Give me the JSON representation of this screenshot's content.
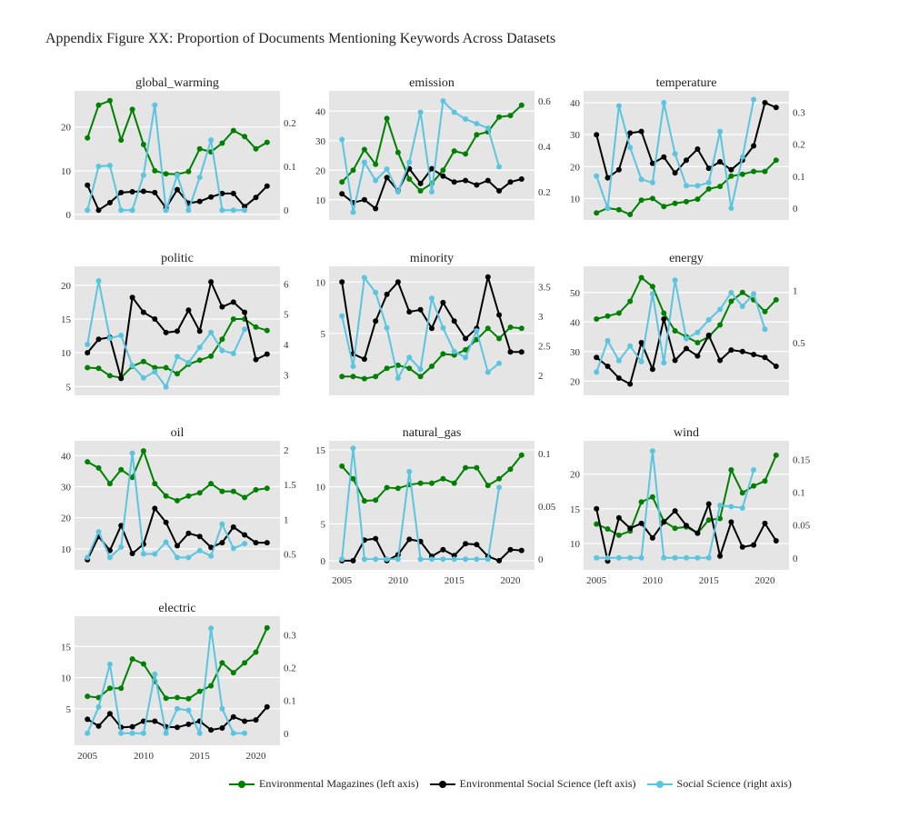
{
  "title": "Appendix Figure XX: Proportion of Documents Mentioning Keywords Across Datasets",
  "colors": {
    "env_mag": "#008000",
    "env_ss": "#000000",
    "ss": "#5bc5e0",
    "panel_bg": "#e5e5e5"
  },
  "legend": [
    {
      "key": "env_mag",
      "label": "Environmental Magazines (left axis)"
    },
    {
      "key": "env_ss",
      "label": "Environmental Social Science (left axis)"
    },
    {
      "key": "ss",
      "label": "Social Science (right axis)"
    }
  ],
  "chart_data": {
    "type": "line",
    "x": [
      2005,
      2006,
      2007,
      2008,
      2009,
      2010,
      2011,
      2012,
      2013,
      2014,
      2015,
      2016,
      2017,
      2018,
      2019,
      2020,
      2021
    ],
    "x_ticks": [
      2005,
      2010,
      2015,
      2020
    ],
    "series_names": [
      "Environmental Magazines (left axis)",
      "Environmental Social Science (left axis)",
      "Social Science (right axis)"
    ],
    "panels": [
      {
        "title": "global_warming",
        "ylim_left": [
          0,
          27
        ],
        "yticks_left": [
          0,
          10,
          20
        ],
        "ylim_right": [
          -0.01,
          0.26
        ],
        "yticks_right": [
          0,
          0.1,
          0.2
        ],
        "env_mag": [
          17.5,
          25,
          26,
          17,
          24,
          16,
          10,
          9.3,
          9.2,
          9.8,
          15,
          14.3,
          16.3,
          19.2,
          17.8,
          15,
          16.5
        ],
        "env_ss": [
          6.7,
          1,
          2.7,
          5,
          5.2,
          5.3,
          5,
          1.5,
          5.7,
          2.6,
          3,
          4,
          4.8,
          4.8,
          1.8,
          3.9,
          6.5
        ],
        "ss": [
          0,
          0.1,
          0.102,
          0,
          0,
          0.08,
          0.24,
          0,
          0.08,
          0,
          0.075,
          0.16,
          0,
          0,
          0,
          null,
          null
        ]
      },
      {
        "title": "emission",
        "ylim_left": [
          5,
          45
        ],
        "yticks_left": [
          10,
          20,
          30,
          40
        ],
        "ylim_right": [
          0.1,
          0.62
        ],
        "yticks_right": [
          0.2,
          0.4,
          0.6
        ],
        "env_mag": [
          16,
          20,
          27,
          22,
          37.5,
          26,
          17,
          13,
          15.5,
          20,
          26.5,
          25.5,
          32,
          33,
          38,
          38.5,
          42
        ],
        "env_ss": [
          12,
          9,
          10,
          7,
          17.5,
          13,
          20.5,
          15.5,
          20.5,
          18,
          16,
          16.5,
          15,
          16.5,
          13,
          16,
          17
        ],
        "ss": [
          0.43,
          0.11,
          0.33,
          0.25,
          0.3,
          0.2,
          0.33,
          0.55,
          0.2,
          0.6,
          0.55,
          0.52,
          0.5,
          0.48,
          0.31,
          null,
          null
        ]
      },
      {
        "title": "temperature",
        "ylim_left": [
          5,
          42
        ],
        "yticks_left": [
          10,
          20,
          30,
          40
        ],
        "ylim_right": [
          -0.02,
          0.35
        ],
        "yticks_right": [
          0,
          0.1,
          0.2,
          0.3
        ],
        "env_mag": [
          5.5,
          7,
          6.5,
          5,
          9.5,
          10,
          7.5,
          8.5,
          9,
          9.8,
          13,
          13.8,
          17,
          17.6,
          18.5,
          18.5,
          22
        ],
        "env_ss": [
          30,
          16.5,
          19,
          30.5,
          31,
          21,
          23,
          18,
          22,
          25.5,
          19.5,
          21.5,
          19,
          22,
          26.5,
          40,
          38.5
        ],
        "ss": [
          0.1,
          0,
          0.32,
          0.19,
          0.09,
          0.08,
          0.33,
          0.17,
          0.07,
          0.07,
          0.08,
          0.24,
          0,
          0.16,
          0.34,
          null,
          null
        ]
      },
      {
        "title": "politic",
        "ylim_left": [
          4.5,
          22
        ],
        "yticks_left": [
          5,
          10,
          15,
          20
        ],
        "ylim_right": [
          2.5,
          6.4
        ],
        "yticks_right": [
          3,
          4,
          5,
          6
        ],
        "env_mag": [
          7.8,
          7.7,
          6.6,
          6.3,
          8,
          8.7,
          7.8,
          7.8,
          6.9,
          8.3,
          8.9,
          9.5,
          12,
          15,
          15,
          13.8,
          13.3
        ],
        "env_ss": [
          10,
          12,
          12.3,
          6.2,
          18.2,
          16,
          15,
          13,
          13.2,
          16.3,
          13.2,
          20.5,
          16.8,
          17.5,
          16,
          9,
          9.8
        ],
        "ss": [
          4,
          6.1,
          4.2,
          4.3,
          3.3,
          2.9,
          3.1,
          2.6,
          3.6,
          3.4,
          3.9,
          4.4,
          3.8,
          3.7,
          4.5,
          null,
          null
        ]
      },
      {
        "title": "minority",
        "ylim_left": [
          -0.5,
          11
        ],
        "yticks_left": [
          5,
          10
        ],
        "ylim_right": [
          1.75,
          3.75
        ],
        "yticks_right": [
          2,
          2.5,
          3,
          3.5
        ],
        "env_mag": [
          0.8,
          0.8,
          0.6,
          0.8,
          1.6,
          1.9,
          1.6,
          0.8,
          1.8,
          3,
          2.9,
          3.4,
          4.4,
          5.5,
          4.5,
          5.6,
          5.5
        ],
        "env_ss": [
          10,
          3,
          2.5,
          6.2,
          8.8,
          10,
          7.1,
          7.3,
          5.5,
          8,
          6.2,
          4.5,
          5.5,
          10.5,
          6.8,
          3.2,
          3.2
        ],
        "ss": [
          3,
          2.15,
          3.65,
          3.4,
          2.8,
          1.95,
          2.3,
          2.1,
          3.3,
          2.8,
          2.4,
          2.3,
          2.75,
          2.05,
          2.2,
          null,
          null
        ]
      },
      {
        "title": "energy",
        "ylim_left": [
          17,
          57
        ],
        "yticks_left": [
          20,
          30,
          40,
          50
        ],
        "ylim_right": [
          0.05,
          1.18
        ],
        "yticks_right": [
          0.5,
          1
        ],
        "env_mag": [
          41,
          42,
          43,
          47,
          55,
          52,
          43,
          37,
          35,
          33,
          35,
          39,
          47,
          50,
          47.5,
          43.5,
          47.5
        ],
        "env_ss": [
          28,
          25,
          21,
          19,
          33,
          24,
          41,
          27,
          31,
          28.5,
          35.5,
          27,
          30.5,
          30,
          29,
          28,
          25
        ],
        "ss": [
          0.22,
          0.52,
          0.33,
          0.47,
          0.32,
          0.97,
          0.31,
          1.1,
          0.54,
          0.6,
          0.72,
          0.82,
          0.98,
          0.85,
          0.97,
          0.63,
          null
        ]
      },
      {
        "title": "oil",
        "ylim_left": [
          5,
          43
        ],
        "yticks_left": [
          10,
          20,
          30,
          40
        ],
        "ylim_right": [
          0.35,
          2.05
        ],
        "yticks_right": [
          0.5,
          1,
          1.5,
          2
        ],
        "env_mag": [
          38,
          36,
          31,
          35.5,
          33,
          41.5,
          31,
          27,
          25.5,
          27,
          28,
          31,
          28.5,
          28.5,
          26.5,
          29,
          29.5
        ],
        "env_ss": [
          6.5,
          14,
          9.5,
          17.5,
          8.5,
          11.5,
          23,
          18.5,
          11,
          15,
          14,
          10.5,
          12,
          17,
          14.5,
          12,
          12
        ],
        "ss": [
          0.45,
          0.82,
          0.45,
          0.6,
          1.95,
          0.5,
          0.5,
          0.67,
          0.45,
          0.45,
          0.55,
          0.47,
          0.93,
          0.58,
          0.65,
          null,
          null
        ]
      },
      {
        "title": "natural_gas",
        "ylim_left": [
          -0.5,
          15.5
        ],
        "yticks_left": [
          0,
          5,
          10,
          15
        ],
        "ylim_right": [
          -0.005,
          0.107
        ],
        "yticks_right": [
          0,
          0.05,
          0.1
        ],
        "env_mag": [
          12.8,
          11.1,
          8.1,
          8.2,
          9.9,
          9.8,
          10.3,
          10.5,
          10.5,
          11.1,
          10.5,
          12.6,
          12.6,
          10.2,
          11.1,
          12.4,
          14.3
        ],
        "env_ss": [
          0,
          0,
          2.8,
          3,
          0,
          0.8,
          2.9,
          2.6,
          0.6,
          1.5,
          0.7,
          2.3,
          2.2,
          0.6,
          0,
          1.5,
          1.4
        ],
        "ss": [
          0,
          0.105,
          0,
          0,
          0,
          0,
          0.083,
          0,
          0,
          0,
          0,
          0,
          0,
          0,
          0.068,
          null,
          null
        ]
      },
      {
        "title": "wind",
        "ylim_left": [
          7,
          24
        ],
        "yticks_left": [
          10,
          15,
          20
        ],
        "ylim_right": [
          -0.01,
          0.17
        ],
        "yticks_right": [
          0,
          0.05,
          0.1,
          0.15
        ],
        "env_mag": [
          12.8,
          12.1,
          11.2,
          11.8,
          16,
          16.7,
          13.2,
          12.2,
          12.4,
          11.5,
          13.4,
          13.6,
          20.6,
          17.3,
          18.3,
          19,
          22.7
        ],
        "env_ss": [
          15,
          7.5,
          13.7,
          12.2,
          12.9,
          10.8,
          13.1,
          14.7,
          12.6,
          11.5,
          15.7,
          8.2,
          13.1,
          9.5,
          9.8,
          12.9,
          10.4
        ],
        "ss": [
          0,
          0,
          0,
          0,
          0,
          0.163,
          0,
          0,
          0,
          0,
          0,
          0.08,
          0.078,
          0.076,
          0.134,
          null,
          null
        ]
      },
      {
        "title": "electric",
        "ylim_left": [
          0,
          19
        ],
        "yticks_left": [
          5,
          10,
          15
        ],
        "ylim_right": [
          -0.02,
          0.34
        ],
        "yticks_right": [
          0,
          0.1,
          0.2,
          0.3
        ],
        "env_mag": [
          7,
          6.8,
          8.3,
          8.3,
          13,
          12.2,
          9.4,
          6.7,
          6.8,
          6.6,
          7.8,
          8.7,
          12.4,
          10.8,
          12.4,
          14.1,
          18
        ],
        "env_ss": [
          3.3,
          2.2,
          4.2,
          2,
          2.1,
          3,
          3,
          2.1,
          2,
          2.5,
          3,
          1.6,
          1.9,
          3.7,
          3,
          3.2,
          5.3
        ],
        "ss": [
          0,
          0.08,
          0.21,
          0,
          0,
          0,
          0.18,
          0,
          0.075,
          0.07,
          0,
          0.32,
          0.075,
          0,
          0,
          null,
          null
        ]
      }
    ]
  }
}
